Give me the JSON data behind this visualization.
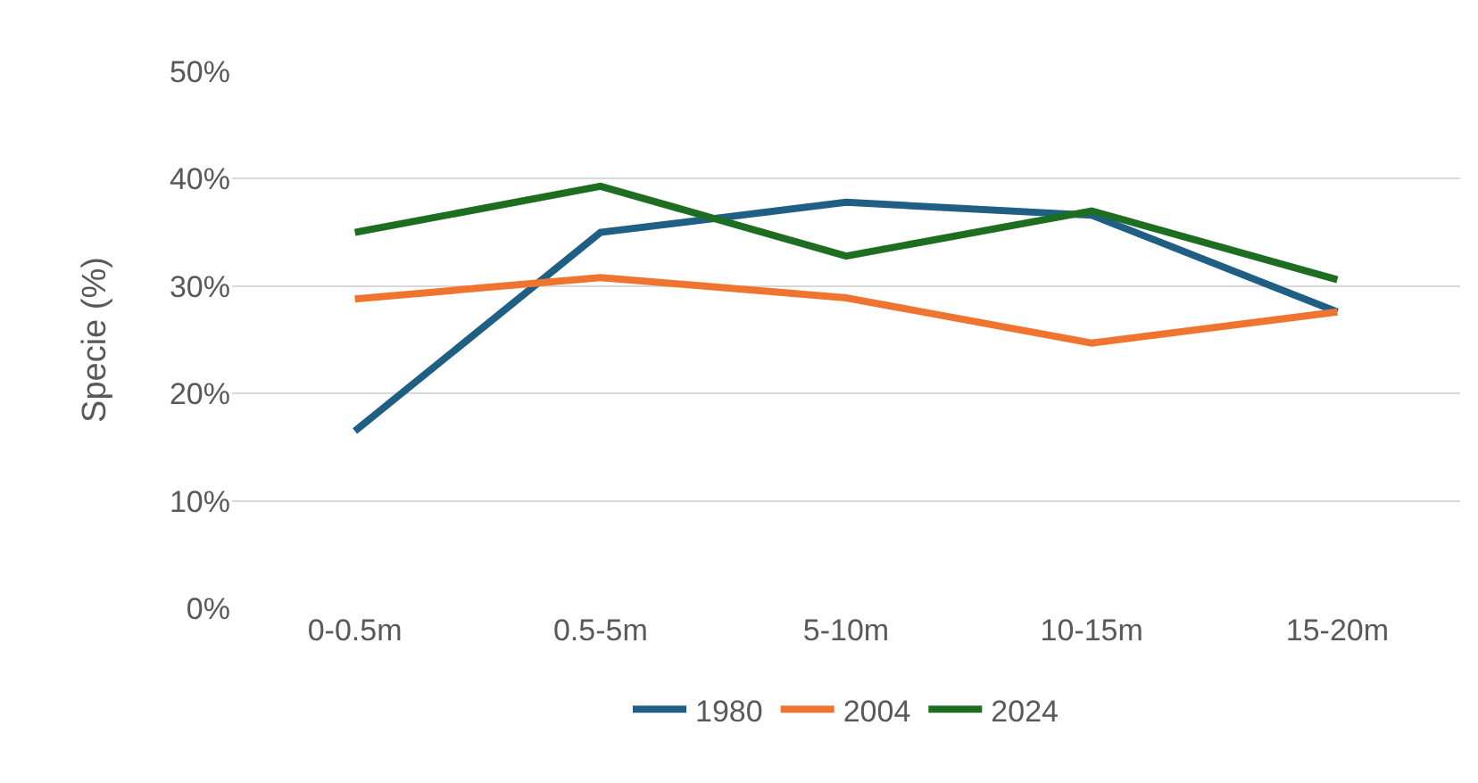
{
  "chart_data": {
    "type": "line",
    "ylabel": "Specie (%)",
    "categories": [
      "0-0.5m",
      "0.5-5m",
      "5-10m",
      "10-15m",
      "15-20m"
    ],
    "series": [
      {
        "name": "1980",
        "color": "#1f5f84",
        "values": [
          16.5,
          35,
          37.8,
          36.6,
          27.6
        ]
      },
      {
        "name": "2004",
        "color": "#ef7430",
        "values": [
          28.8,
          30.8,
          28.9,
          24.7,
          27.6
        ]
      },
      {
        "name": "2024",
        "color": "#1d6e21",
        "values": [
          35,
          39.3,
          32.8,
          37,
          30.6
        ]
      }
    ],
    "ylim": [
      0,
      50
    ],
    "yticks": [
      {
        "value": 0,
        "label": "0%"
      },
      {
        "value": 10,
        "label": "10%"
      },
      {
        "value": 20,
        "label": "20%"
      },
      {
        "value": 30,
        "label": "30%"
      },
      {
        "value": 40,
        "label": "40%"
      },
      {
        "value": 50,
        "label": "50%"
      }
    ],
    "grid": "y",
    "legend": "bottom",
    "marker": "none",
    "line_style": "solid"
  }
}
